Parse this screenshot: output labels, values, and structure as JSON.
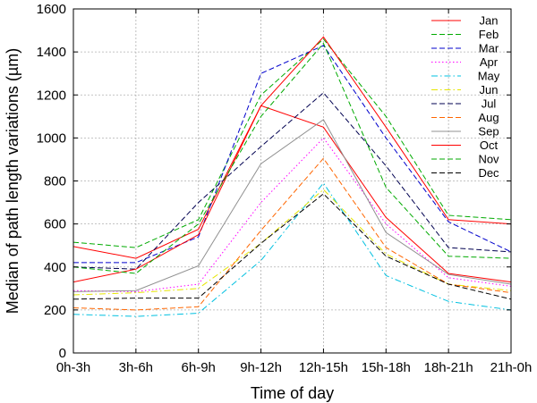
{
  "chart_data": {
    "type": "line",
    "xlabel": "Time of day",
    "ylabel": "Median of path length variations (µm)",
    "categories": [
      "0h-3h",
      "3h-6h",
      "6h-9h",
      "9h-12h",
      "12h-15h",
      "15h-18h",
      "18h-21h",
      "21h-0h"
    ],
    "ylim": [
      0,
      1600
    ],
    "yticks": [
      0,
      200,
      400,
      600,
      800,
      1000,
      1200,
      1400,
      1600
    ],
    "grid": true,
    "legend_position": "top-right",
    "series": [
      {
        "name": "Jan",
        "color": "#ff0000",
        "dash": "solid",
        "values": [
          495,
          440,
          575,
          1150,
          1050,
          630,
          370,
          330
        ]
      },
      {
        "name": "Feb",
        "color": "#00aa00",
        "dash": "dashed",
        "values": [
          515,
          490,
          620,
          1200,
          1460,
          1100,
          640,
          620
        ]
      },
      {
        "name": "Mar",
        "color": "#0000cc",
        "dash": "dashed",
        "values": [
          420,
          420,
          540,
          1300,
          1430,
          1000,
          610,
          470
        ]
      },
      {
        "name": "Apr",
        "color": "#ff00ff",
        "dash": "dotted",
        "values": [
          290,
          285,
          320,
          700,
          1000,
          600,
          350,
          310
        ]
      },
      {
        "name": "May",
        "color": "#00c0e0",
        "dash": "dashdot",
        "values": [
          180,
          170,
          185,
          430,
          790,
          360,
          240,
          200
        ]
      },
      {
        "name": "Jun",
        "color": "#e6e600",
        "dash": "dashdot",
        "values": [
          270,
          280,
          300,
          510,
          760,
          460,
          320,
          290
        ]
      },
      {
        "name": "Jul",
        "color": "#000050",
        "dash": "dashed",
        "values": [
          400,
          390,
          700,
          960,
          1210,
          870,
          490,
          470
        ]
      },
      {
        "name": "Aug",
        "color": "#ff6600",
        "dash": "dashed",
        "values": [
          210,
          200,
          215,
          570,
          905,
          490,
          320,
          280
        ]
      },
      {
        "name": "Sep",
        "color": "#909090",
        "dash": "solid",
        "values": [
          285,
          290,
          405,
          880,
          1085,
          560,
          365,
          320
        ]
      },
      {
        "name": "Oct",
        "color": "#ff0000",
        "dash": "solid",
        "values": [
          330,
          390,
          550,
          1150,
          1470,
          1050,
          620,
          600
        ]
      },
      {
        "name": "Nov",
        "color": "#00aa00",
        "dash": "dashed",
        "values": [
          400,
          370,
          600,
          1100,
          1440,
          770,
          450,
          440
        ]
      },
      {
        "name": "Dec",
        "color": "#000000",
        "dash": "dashed",
        "values": [
          250,
          255,
          255,
          510,
          740,
          450,
          320,
          250
        ]
      }
    ]
  }
}
